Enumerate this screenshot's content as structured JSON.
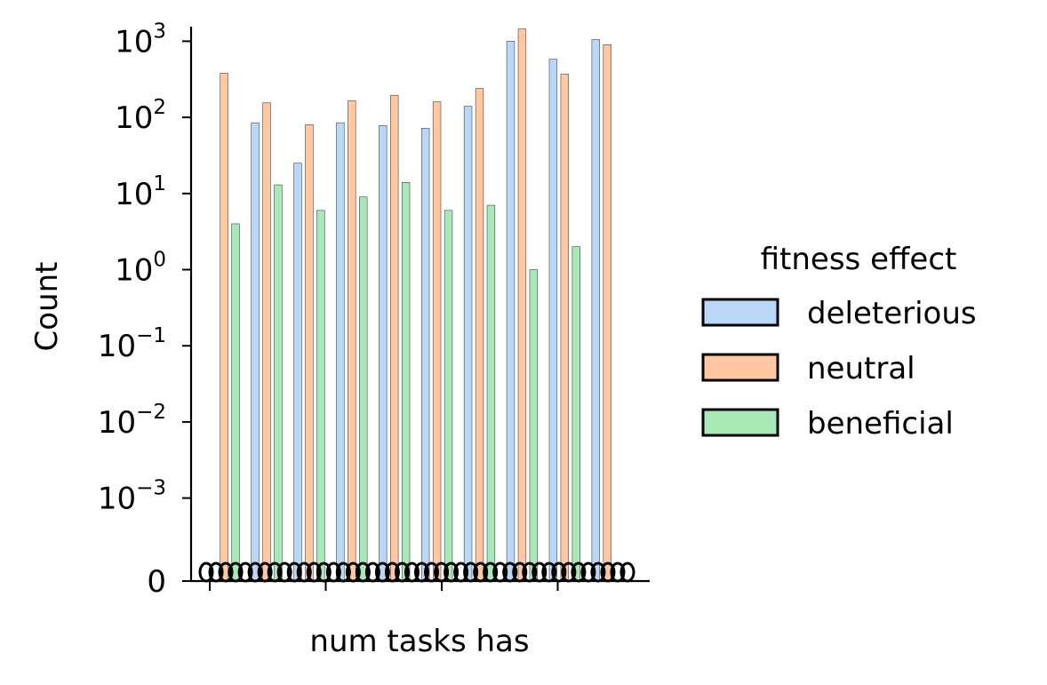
{
  "chart_data": {
    "type": "bar",
    "xlabel": "num tasks has",
    "ylabel": "Count",
    "yscale": "symlog",
    "ylim": [
      0,
      1500
    ],
    "ytick_labels": [
      {
        "base": "0",
        "exp": ""
      },
      {
        "base": "10",
        "exp": "−3"
      },
      {
        "base": "10",
        "exp": "−2"
      },
      {
        "base": "10",
        "exp": "−1"
      },
      {
        "base": "10",
        "exp": "0"
      },
      {
        "base": "10",
        "exp": "1"
      },
      {
        "base": "10",
        "exp": "2"
      },
      {
        "base": "10",
        "exp": "3"
      }
    ],
    "zero_label": "0",
    "bin_count": 10,
    "x_major_tick_count": 4,
    "legend": {
      "title": "fitness effect",
      "placement": "right",
      "entries": [
        "deleterious",
        "neutral",
        "beneficial"
      ]
    },
    "series": [
      {
        "name": "deleterious",
        "color": "#b9d8f7",
        "values": [
          0,
          85,
          25,
          85,
          78,
          72,
          140,
          1000,
          580,
          1050
        ]
      },
      {
        "name": "neutral",
        "color": "#ffc8a0",
        "values": [
          380,
          155,
          80,
          165,
          195,
          160,
          240,
          1450,
          370,
          900
        ]
      },
      {
        "name": "beneficial",
        "color": "#a8e9b8",
        "values": [
          4,
          13,
          6,
          9,
          14,
          6,
          7,
          1,
          2,
          0
        ]
      }
    ]
  }
}
